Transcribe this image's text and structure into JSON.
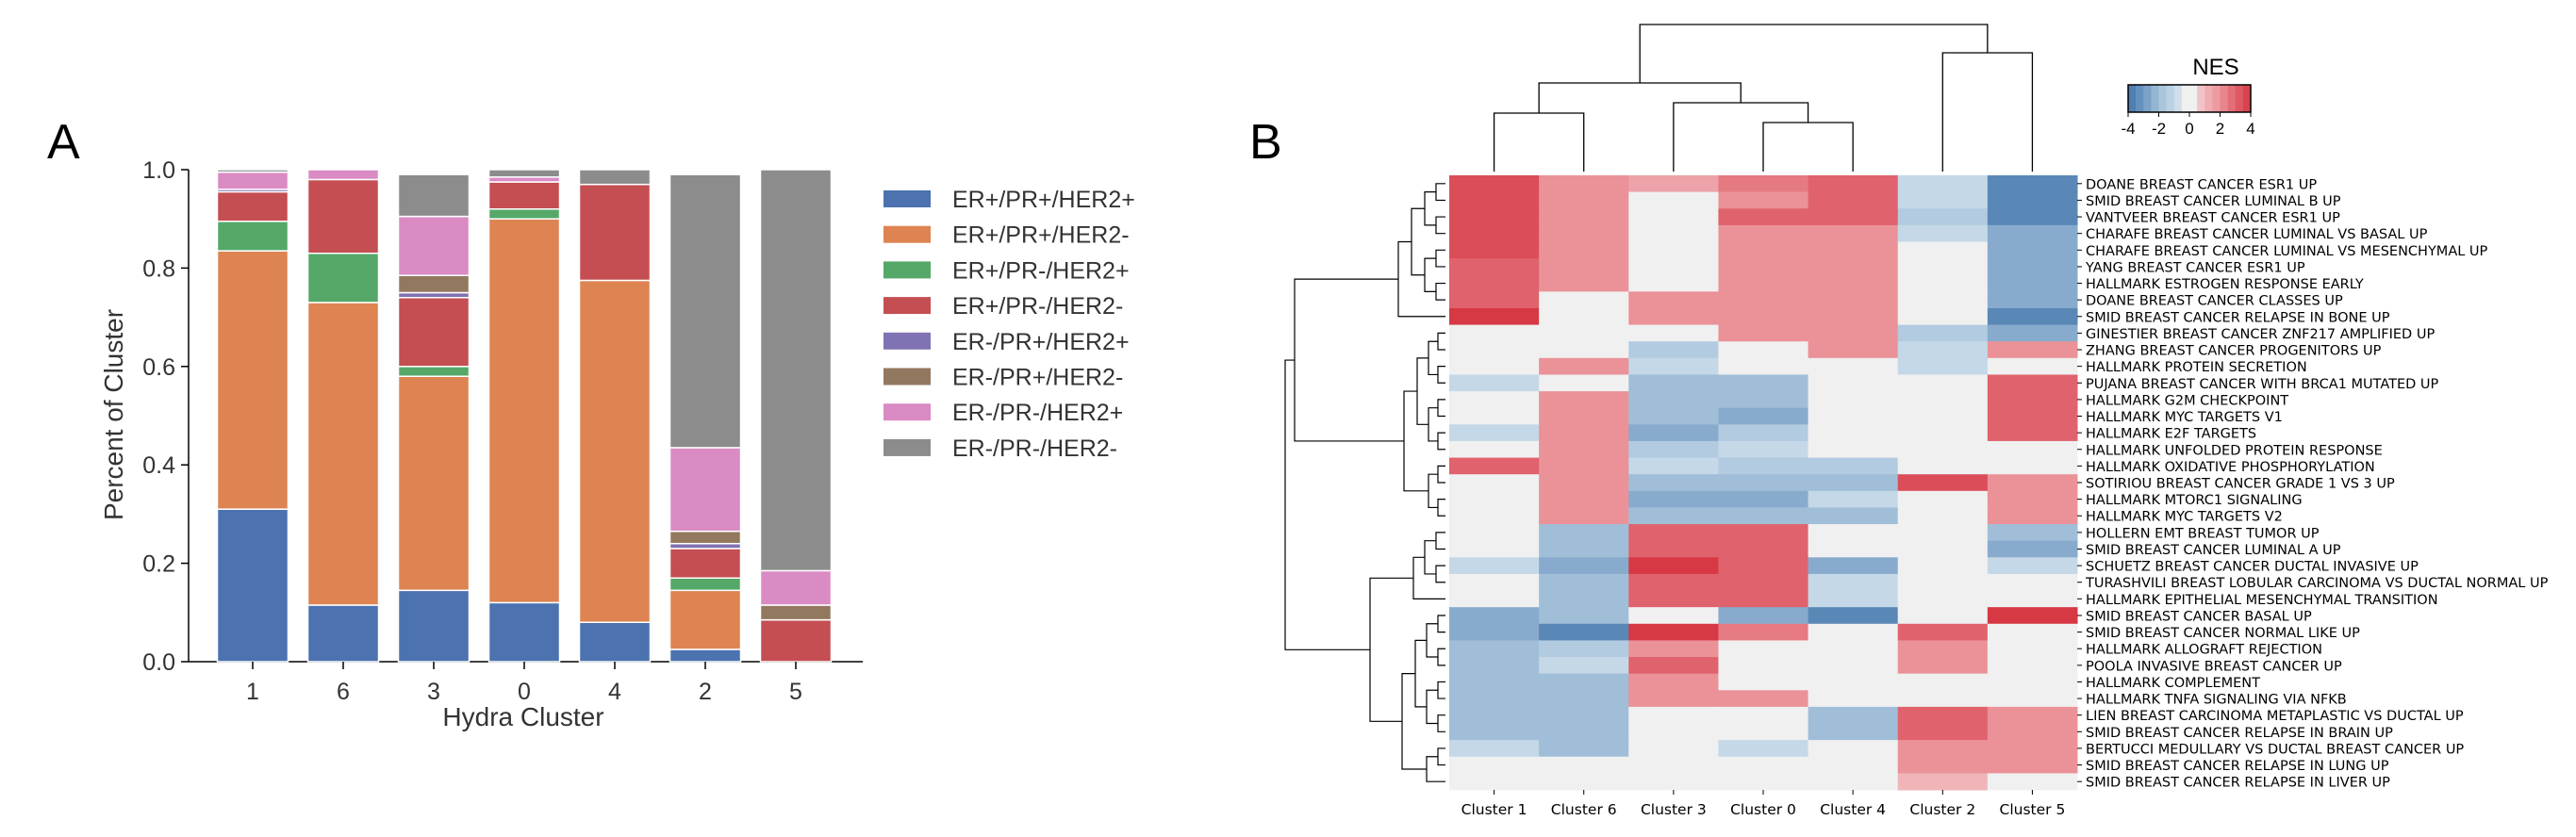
{
  "panels": {
    "a_label": "A",
    "b_label": "B"
  },
  "colors": {
    "ER+/PR+/HER2+": "#4c72b0",
    "ER+/PR+/HER2-": "#dd8452",
    "ER+/PR-/HER2+": "#55a868",
    "ER+/PR-/HER2-": "#c44e52",
    "ER-/PR+/HER2+": "#8172b3",
    "ER-/PR+/HER2-": "#937860",
    "ER-/PR-/HER2+": "#da8bc3",
    "ER-/PR-/HER2-": "#8c8c8c"
  },
  "chart_data": [
    {
      "type": "bar",
      "stacked": true,
      "xlabel": "Hydra Cluster",
      "ylabel": "Percent of Cluster",
      "ylim": [
        0,
        1.0
      ],
      "yticks": [
        "0.0",
        "0.2",
        "0.4",
        "0.6",
        "0.8",
        "1.0"
      ],
      "categories": [
        "1",
        "6",
        "3",
        "0",
        "4",
        "2",
        "5"
      ],
      "legend_position": "right",
      "series": [
        {
          "name": "ER+/PR+/HER2+",
          "values": [
            0.31,
            0.115,
            0.145,
            0.12,
            0.08,
            0.025,
            0.0
          ]
        },
        {
          "name": "ER+/PR+/HER2-",
          "values": [
            0.525,
            0.615,
            0.435,
            0.78,
            0.695,
            0.12,
            0.0
          ]
        },
        {
          "name": "ER+/PR-/HER2+",
          "values": [
            0.06,
            0.1,
            0.02,
            0.02,
            0.0,
            0.025,
            0.0
          ]
        },
        {
          "name": "ER+/PR-/HER2-",
          "values": [
            0.06,
            0.15,
            0.14,
            0.055,
            0.195,
            0.06,
            0.085
          ]
        },
        {
          "name": "ER-/PR+/HER2+",
          "values": [
            0.005,
            0.0,
            0.01,
            0.0,
            0.0,
            0.01,
            0.0
          ]
        },
        {
          "name": "ER-/PR+/HER2-",
          "values": [
            0.0,
            0.0,
            0.035,
            0.0,
            0.0,
            0.025,
            0.03
          ]
        },
        {
          "name": "ER-/PR-/HER2+",
          "values": [
            0.035,
            0.02,
            0.12,
            0.01,
            0.0,
            0.17,
            0.07
          ]
        },
        {
          "name": "ER-/PR-/HER2-",
          "values": [
            0.005,
            0.0,
            0.085,
            0.015,
            0.03,
            0.555,
            0.815
          ]
        }
      ]
    },
    {
      "type": "heatmap",
      "colorbar_title": "NES",
      "colorbar_ticks": [
        "-4",
        "-2",
        "0",
        "2",
        "4"
      ],
      "value_range": [
        -4,
        4
      ],
      "columns": [
        "Cluster 1",
        "Cluster 6",
        "Cluster 3",
        "Cluster 0",
        "Cluster 4",
        "Cluster 2",
        "Cluster 5"
      ],
      "rows": [
        "DOANE BREAST CANCER ESR1 UP",
        "SMID BREAST CANCER LUMINAL B UP",
        "VANTVEER BREAST CANCER ESR1 UP",
        "CHARAFE BREAST CANCER LUMINAL VS BASAL UP",
        "CHARAFE BREAST CANCER LUMINAL VS MESENCHYMAL UP",
        "YANG BREAST CANCER ESR1 UP",
        "HALLMARK ESTROGEN RESPONSE EARLY",
        "DOANE BREAST CANCER CLASSES UP",
        "SMID BREAST CANCER RELAPSE IN BONE UP",
        "GINESTIER BREAST CANCER ZNF217 AMPLIFIED UP",
        "ZHANG BREAST CANCER PROGENITORS UP",
        "HALLMARK PROTEIN SECRETION",
        "PUJANA BREAST CANCER WITH BRCA1 MUTATED UP",
        "HALLMARK G2M CHECKPOINT",
        "HALLMARK MYC TARGETS V1",
        "HALLMARK E2F TARGETS",
        "HALLMARK UNFOLDED PROTEIN RESPONSE",
        "HALLMARK OXIDATIVE PHOSPHORYLATION",
        "SOTIRIOU BREAST CANCER GRADE 1 VS 3 UP",
        "HALLMARK MTORC1 SIGNALING",
        "HALLMARK MYC TARGETS V2",
        "HOLLERN EMT BREAST TUMOR UP",
        "SMID BREAST CANCER LUMINAL A UP",
        "SCHUETZ BREAST CANCER DUCTAL INVASIVE UP",
        "TURASHVILI BREAST LOBULAR CARCINOMA VS DUCTAL NORMAL UP",
        "HALLMARK EPITHELIAL MESENCHYMAL TRANSITION",
        "SMID BREAST CANCER BASAL UP",
        "SMID BREAST CANCER NORMAL LIKE UP",
        "HALLMARK ALLOGRAFT REJECTION",
        "POOLA INVASIVE BREAST CANCER UP",
        "HALLMARK COMPLEMENT",
        "HALLMARK TNFA SIGNALING VIA NFKB",
        "LIEN BREAST CARCINOMA METAPLASTIC VS DUCTAL UP",
        "SMID BREAST CANCER RELAPSE IN BRAIN UP",
        "BERTUCCI MEDULLARY VS DUCTAL BREAST CANCER UP",
        "SMID BREAST CANCER RELAPSE IN LUNG UP",
        "SMID BREAST CANCER RELAPSE IN LIVER UP"
      ],
      "values": [
        [
          3.5,
          2,
          1.5,
          2.5,
          3,
          -1,
          -3.5
        ],
        [
          3.5,
          2,
          0,
          2,
          3,
          -1,
          -3.5
        ],
        [
          3.5,
          2,
          0,
          3,
          3,
          -1.5,
          -3.5
        ],
        [
          3.5,
          2,
          0,
          2,
          2,
          -1,
          -2.5
        ],
        [
          3.5,
          2,
          0,
          2,
          2,
          0,
          -2.5
        ],
        [
          3,
          2,
          0,
          2,
          2,
          0,
          -2.5
        ],
        [
          3,
          2,
          0,
          2,
          2,
          0,
          -2.5
        ],
        [
          3,
          0,
          2,
          2,
          2,
          0,
          -2.5
        ],
        [
          4,
          0,
          2,
          2,
          2,
          0,
          -3.5
        ],
        [
          0,
          0,
          0,
          2,
          2,
          -1.5,
          -2.5
        ],
        [
          0,
          0,
          -1.5,
          0,
          2,
          -1,
          2
        ],
        [
          0,
          2,
          -1,
          0,
          0,
          -1,
          0
        ],
        [
          -1,
          0,
          -2,
          -2,
          0,
          0,
          3
        ],
        [
          0,
          2,
          -2,
          -2,
          0,
          0,
          3
        ],
        [
          0,
          2,
          -2,
          -2.5,
          0,
          0,
          3
        ],
        [
          -1,
          2,
          -2.5,
          -1.5,
          0,
          0,
          3
        ],
        [
          0,
          2,
          -1.5,
          -1,
          0,
          0,
          0
        ],
        [
          3,
          2,
          -1,
          -1.5,
          -1.5,
          0,
          0
        ],
        [
          0,
          2,
          -2,
          -2,
          -2,
          3.5,
          2
        ],
        [
          0,
          2,
          -2.5,
          -2.5,
          -1,
          0,
          2
        ],
        [
          0,
          2,
          -2,
          -2,
          -2,
          0,
          2
        ],
        [
          0,
          -2,
          3,
          3,
          0,
          0,
          -2
        ],
        [
          0,
          -2,
          3,
          3,
          0,
          0,
          -2.5
        ],
        [
          -1,
          -2.5,
          4,
          3,
          -2.5,
          0,
          -1
        ],
        [
          0,
          -2,
          3,
          3,
          -1,
          0,
          0
        ],
        [
          0,
          -2,
          3,
          3,
          -1,
          0,
          0
        ],
        [
          -2.5,
          -2,
          0,
          -2.5,
          -3.5,
          0,
          4
        ],
        [
          -2.5,
          -3.5,
          4,
          2.5,
          0,
          3,
          0
        ],
        [
          -2,
          -1.5,
          2,
          0,
          0,
          2,
          0
        ],
        [
          -2,
          -1,
          3,
          0,
          0,
          2,
          0
        ],
        [
          -2,
          -2,
          2,
          0,
          0,
          0,
          0
        ],
        [
          -2,
          -2,
          2,
          2,
          0,
          0,
          0
        ],
        [
          -2,
          -2,
          0,
          0,
          -2,
          3,
          2
        ],
        [
          -2,
          -2,
          0,
          0,
          -2,
          3,
          2
        ],
        [
          -1,
          -2,
          0,
          -1,
          0,
          2,
          2
        ],
        [
          0,
          0,
          0,
          0,
          0,
          2,
          2
        ],
        [
          0,
          0,
          0,
          0,
          0,
          1,
          0
        ]
      ]
    }
  ]
}
